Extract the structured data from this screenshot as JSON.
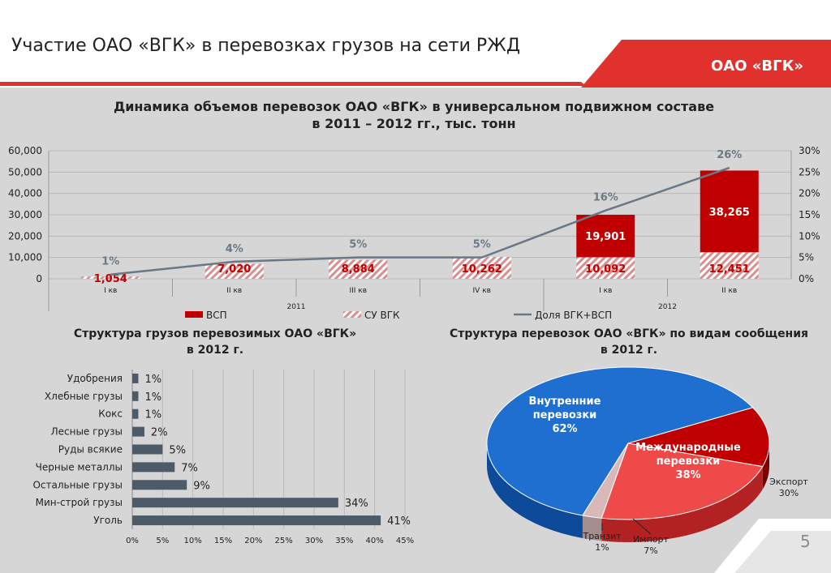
{
  "header": {
    "title": "Участие ОАО «ВГК» в перевозках грузов на сети РЖД",
    "brand": "ОАО «ВГК»",
    "page_number": "5"
  },
  "colors": {
    "red": "#c00000",
    "blue": "#1f6fd1",
    "bar_gray": "#4d5b69",
    "line": "#6b7785",
    "accent": "#e0312c"
  },
  "chart_data": [
    {
      "type": "bar",
      "title_line1": "Динамика объемов перевозок ОАО «ВГК» в универсальном подвижном составе",
      "title_line2": "в 2011 – 2012 гг., тыс. тонн",
      "categories": [
        "I кв",
        "II кв",
        "III кв",
        "IV кв",
        "I кв",
        "II кв"
      ],
      "year_groups": [
        {
          "label": "2011",
          "span": 4
        },
        {
          "label": "2012",
          "span": 2
        }
      ],
      "series": [
        {
          "name": "СУ ВГК",
          "values": [
            1054,
            7020,
            8884,
            10262,
            10092,
            12451
          ],
          "labels": [
            "1,054",
            "7,020",
            "8,884",
            "10,262",
            "10,092",
            "12,451"
          ]
        },
        {
          "name": "ВСП",
          "values": [
            0,
            0,
            0,
            0,
            19901,
            38265
          ],
          "labels": [
            "",
            "",
            "",
            "",
            "19,901",
            "38,265"
          ]
        },
        {
          "name": "Доля ВГК+ВСП",
          "axis": "right",
          "values": [
            1,
            4,
            5,
            5,
            16,
            26
          ],
          "labels": [
            "1%",
            "4%",
            "5%",
            "5%",
            "16%",
            "26%"
          ]
        }
      ],
      "legend_order": [
        "ВСП",
        "СУ ВГК",
        "Доля ВГК+ВСП"
      ],
      "legend_placement": "bottom",
      "y_left": {
        "min": 0,
        "max": 60000,
        "ticks": [
          0,
          10000,
          20000,
          30000,
          40000,
          50000,
          60000
        ],
        "tick_labels": [
          "0",
          "10,000",
          "20,000",
          "30,000",
          "40,000",
          "50,000",
          "60,000"
        ]
      },
      "y_right": {
        "min": 0,
        "max": 30,
        "ticks": [
          0,
          5,
          10,
          15,
          20,
          25,
          30
        ],
        "tick_labels": [
          "0%",
          "5%",
          "10%",
          "15%",
          "20%",
          "25%",
          "30%"
        ]
      },
      "grid": true
    },
    {
      "type": "bar",
      "orientation": "horizontal",
      "title_line1": "Структура грузов перевозимых ОАО «ВГК»",
      "title_line2": "в 2012 г.",
      "categories": [
        "Удобрения",
        "Хлебные грузы",
        "Кокс",
        "Лесные грузы",
        "Руды  всякие",
        "Черные металлы",
        "Остальные грузы",
        "Мин-строй  грузы",
        "Уголь"
      ],
      "values": [
        1,
        1,
        1,
        2,
        5,
        7,
        9,
        34,
        41
      ],
      "labels": [
        "1%",
        "1%",
        "1%",
        "2%",
        "5%",
        "7%",
        "9%",
        "34%",
        "41%"
      ],
      "x_axis": {
        "min": 0,
        "max": 45,
        "ticks": [
          0,
          5,
          10,
          15,
          20,
          25,
          30,
          35,
          40,
          45
        ],
        "tick_labels": [
          "0%",
          "5%",
          "10%",
          "15%",
          "20%",
          "25%",
          "30%",
          "35%",
          "40%",
          "45%"
        ]
      },
      "grid": true
    },
    {
      "type": "pie",
      "style": "3d",
      "title_line1": "Структура перевозок ОАО «ВГК» по видам сообщения",
      "title_line2": "в 2012 г.",
      "main_slices": [
        {
          "name_line1": "Внутренние",
          "name_line2": "перевозки",
          "value": 62,
          "label": "62%"
        },
        {
          "name_line1": "Международные",
          "name_line2": "перевозки",
          "value": 38,
          "label": "38%"
        }
      ],
      "sub_slices": [
        {
          "name": "Экспорт",
          "value": 30,
          "label": "30%"
        },
        {
          "name": "Импорт",
          "value": 7,
          "label": "7%"
        },
        {
          "name": "Транзит",
          "value": 1,
          "label": "1%"
        }
      ]
    }
  ]
}
